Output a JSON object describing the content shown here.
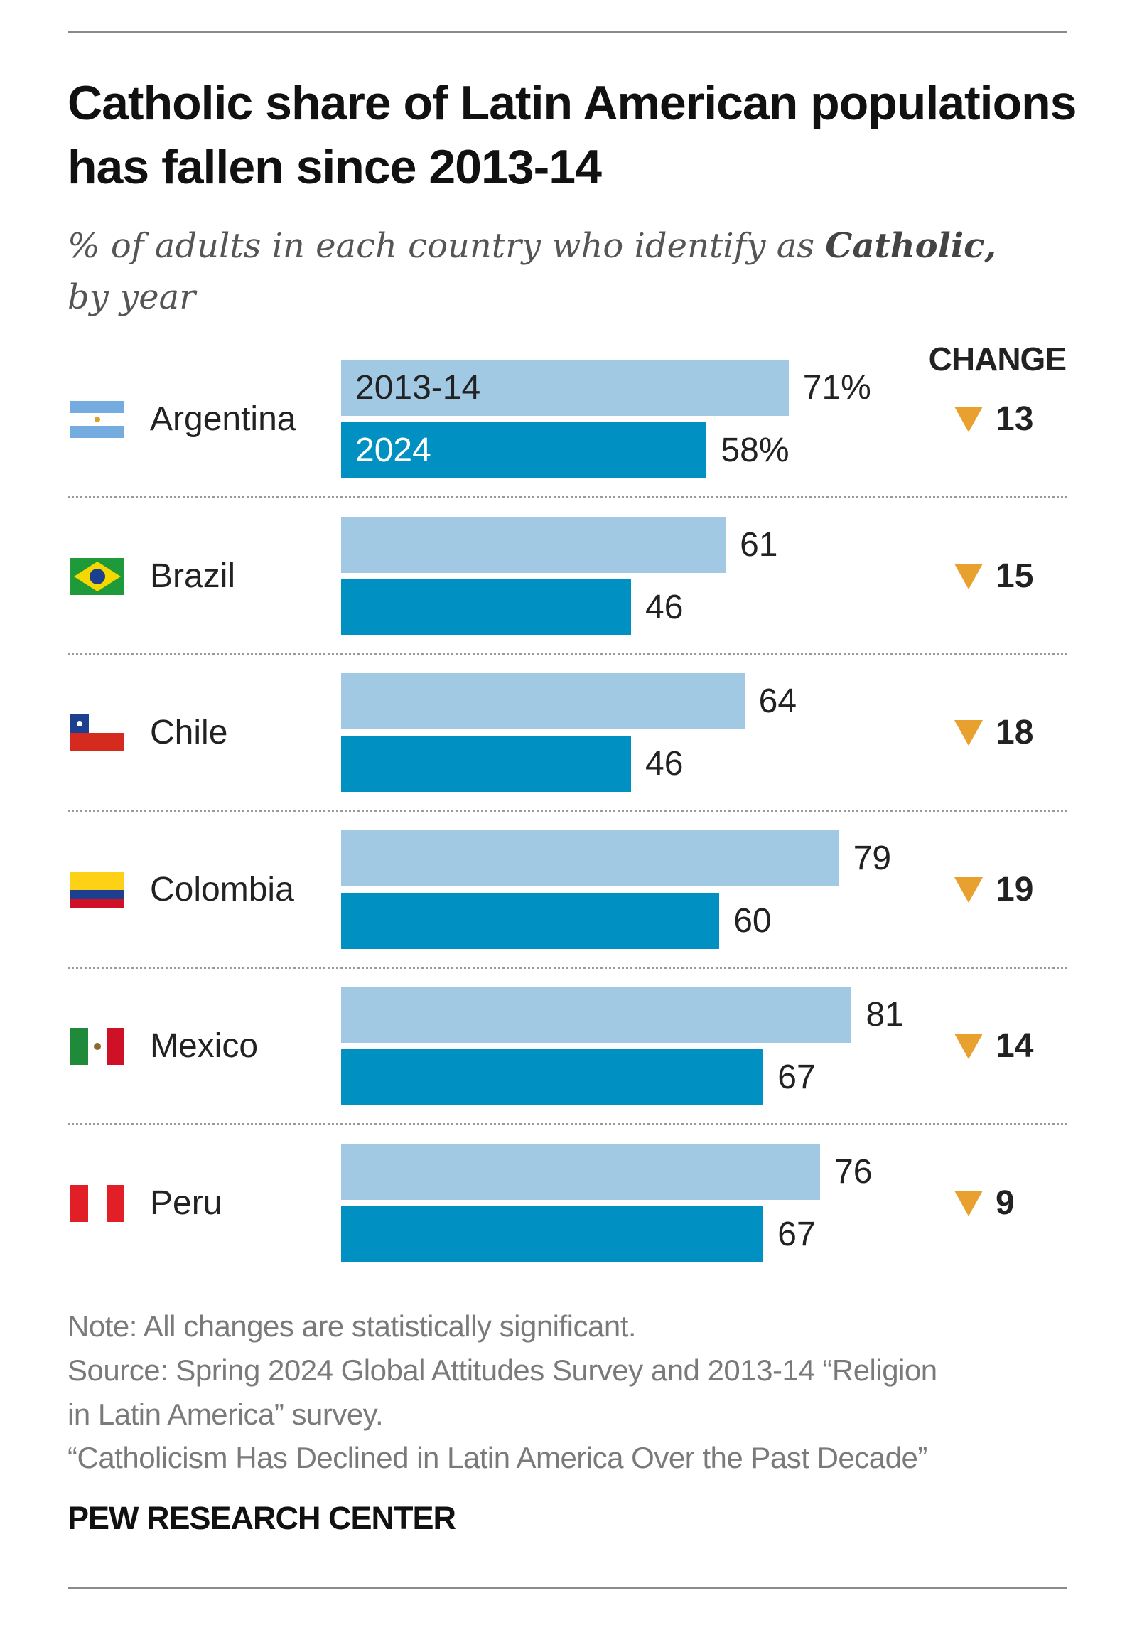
{
  "chart_data": {
    "type": "bar",
    "orientation": "horizontal",
    "title": "Catholic share of Latin American populations has fallen since 2013-14",
    "subtitle_prefix": "% of adults in each country who identify as",
    "subtitle_emphasis": "Catholic,",
    "subtitle_suffix": "by year",
    "categories": [
      "Argentina",
      "Brazil",
      "Chile",
      "Colombia",
      "Mexico",
      "Peru"
    ],
    "series": [
      {
        "name": "2013-14",
        "values": [
          71,
          61,
          64,
          79,
          81,
          76
        ],
        "color": "#a2c9e3"
      },
      {
        "name": "2024",
        "values": [
          58,
          46,
          46,
          60,
          67,
          67
        ],
        "color": "#0090c2"
      }
    ],
    "value_labels_old": [
      "71%",
      "61",
      "64",
      "79",
      "81",
      "76"
    ],
    "value_labels_new": [
      "58%",
      "46",
      "46",
      "60",
      "67",
      "67"
    ],
    "change_header": "CHANGE",
    "change": [
      13,
      15,
      18,
      19,
      14,
      9
    ],
    "change_direction": "down",
    "change_color": "#e8a02e",
    "xlim": [
      0,
      100
    ],
    "grid": false
  },
  "footer": {
    "note": "Note: All changes are statistically significant.",
    "source_line1": "Source: Spring 2024 Global Attitudes Survey and 2013-14 “Religion",
    "source_line2": "in Latin America” survey.",
    "report": "“Catholicism Has Declined in Latin America Over the Past Decade”",
    "brand": "PEW RESEARCH CENTER"
  }
}
